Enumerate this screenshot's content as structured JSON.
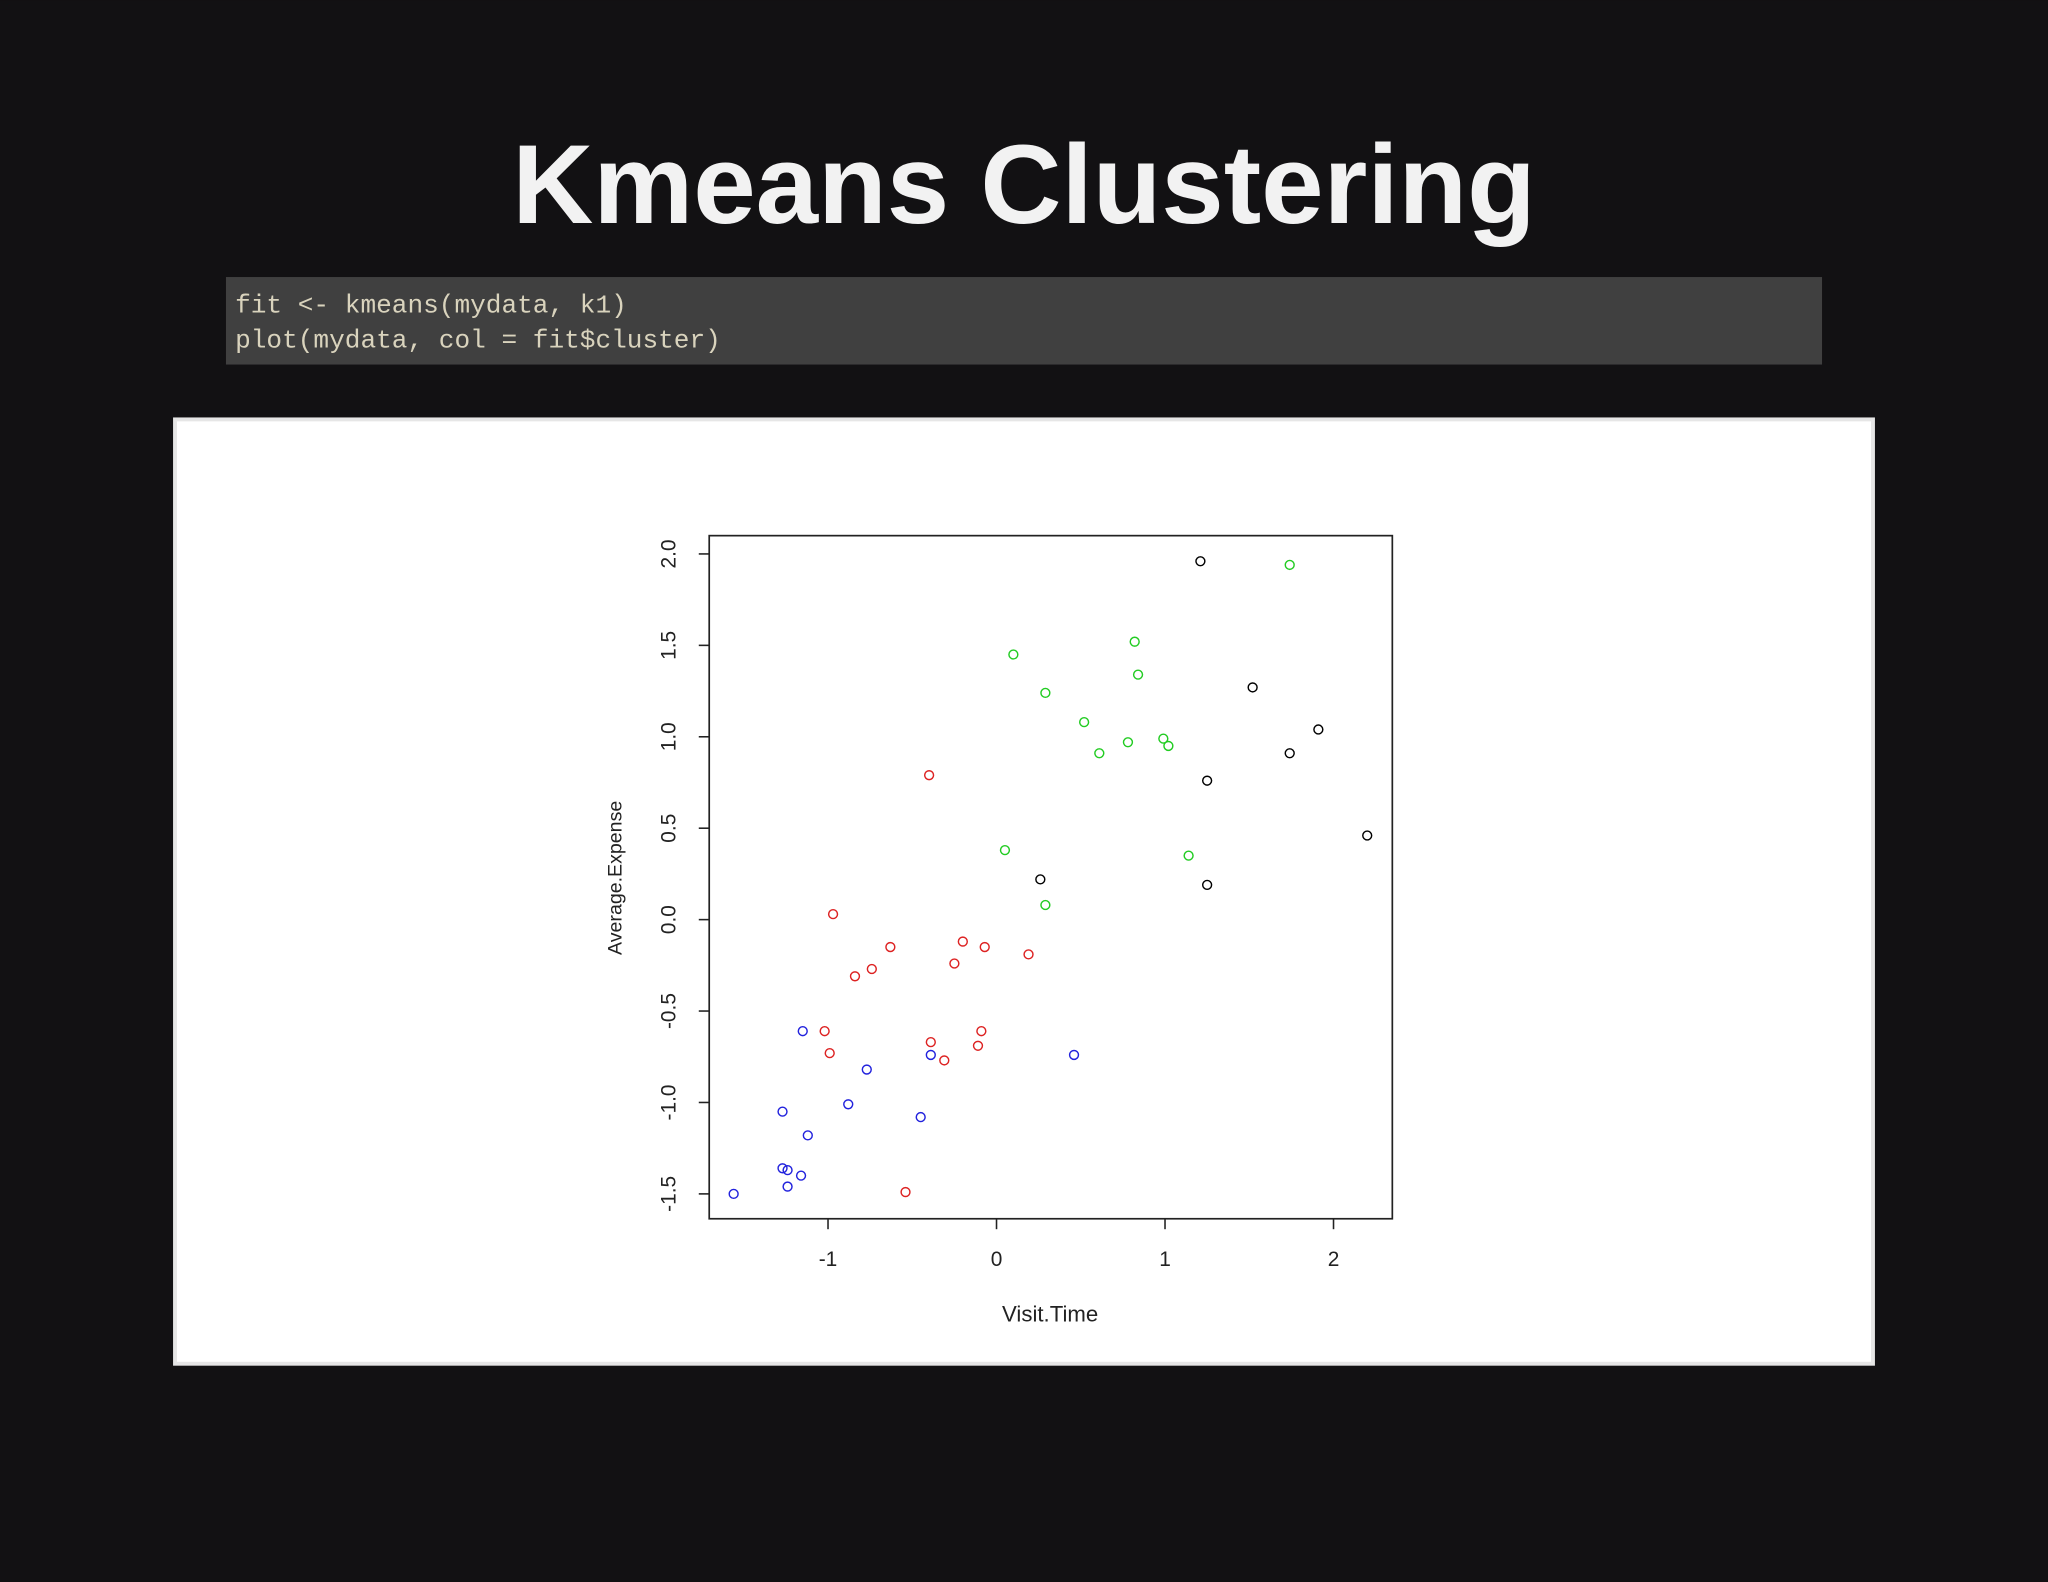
{
  "title": "Kmeans Clustering",
  "code": [
    "fit <- kmeans(mydata, k1)",
    "plot(mydata, col = fit$cluster)"
  ],
  "chart_data": {
    "type": "scatter",
    "xlabel": "Visit.Time",
    "ylabel": "Average.Expense",
    "xlim": [
      -1.705,
      2.349
    ],
    "ylim": [
      -1.636,
      2.1
    ],
    "xticks": [
      -1,
      0,
      1,
      2
    ],
    "yticks": [
      -1.5,
      {
        "value": -1.0,
        "label": "-1.0"
      },
      -0.5,
      {
        "value": 0.0,
        "label": "0.0"
      },
      0.5,
      {
        "value": 1.0,
        "label": "1.0"
      },
      1.5,
      {
        "value": 2.0,
        "label": "2.0"
      }
    ],
    "series": [
      {
        "color": "#000000",
        "x": [
          1.21,
          1.52,
          1.91,
          1.74,
          1.25,
          2.2,
          0.26,
          1.25
        ],
        "values": [
          1.96,
          1.27,
          1.04,
          0.91,
          0.76,
          0.46,
          0.22,
          0.19
        ]
      },
      {
        "color": "#22cc22",
        "x": [
          1.74,
          0.1,
          0.82,
          0.84,
          0.29,
          0.52,
          0.61,
          0.78,
          0.99,
          1.02,
          1.14,
          0.05,
          0.29
        ],
        "values": [
          1.94,
          1.45,
          1.52,
          1.34,
          1.24,
          1.08,
          0.91,
          0.97,
          0.99,
          0.95,
          0.35,
          0.38,
          0.08
        ]
      },
      {
        "color": "#dd2222",
        "x": [
          -0.4,
          -0.97,
          -0.63,
          -0.2,
          -0.07,
          -0.74,
          -0.84,
          -0.25,
          0.19,
          -1.02,
          -0.99,
          -0.39,
          -0.09,
          -0.11,
          -0.31,
          -0.54
        ],
        "values": [
          0.79,
          0.03,
          -0.15,
          -0.12,
          -0.15,
          -0.27,
          -0.31,
          -0.24,
          -0.19,
          -0.61,
          -0.73,
          -0.67,
          -0.61,
          -0.69,
          -0.77,
          -1.49
        ]
      },
      {
        "color": "#2222dd",
        "x": [
          -1.15,
          -0.77,
          -0.39,
          0.46,
          -0.88,
          -1.27,
          -0.45,
          -1.12,
          -1.27,
          -1.24,
          -1.16,
          -1.24,
          -1.56
        ],
        "values": [
          -0.61,
          -0.82,
          -0.74,
          -0.74,
          -1.01,
          -1.05,
          -1.08,
          -1.18,
          -1.36,
          -1.37,
          -1.4,
          -1.46,
          -1.5
        ]
      }
    ]
  }
}
